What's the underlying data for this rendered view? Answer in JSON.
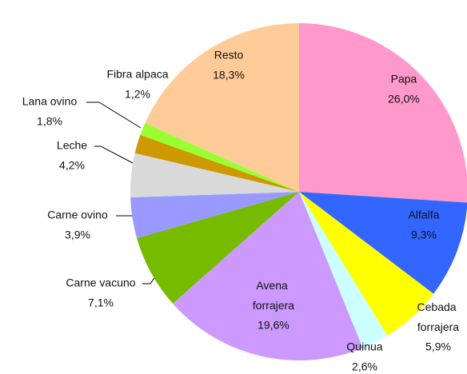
{
  "chart_data": {
    "type": "pie",
    "categories": [
      "Papa",
      "Alfalfa",
      "Cebada forrajera",
      "Quinua",
      "Avena forrajera",
      "Carne vacuno",
      "Carne ovino",
      "Leche",
      "Lana ovino",
      "Fibra alpaca",
      "Resto"
    ],
    "values": [
      26.0,
      9.3,
      5.9,
      2.6,
      19.6,
      7.1,
      3.9,
      4.2,
      1.8,
      1.2,
      18.3
    ],
    "value_labels": [
      "26,0%",
      "9,3%",
      "5,9%",
      "2,6%",
      "19,6%",
      "7,1%",
      "3,9%",
      "4,2%",
      "1,8%",
      "1,2%",
      "18,3%"
    ],
    "colors": [
      "#ff99cc",
      "#3366ff",
      "#ffff00",
      "#ccffff",
      "#cc99ff",
      "#77bb00",
      "#9999ff",
      "#d9d9d9",
      "#cc9900",
      "#99ff33",
      "#ffcc99"
    ]
  }
}
